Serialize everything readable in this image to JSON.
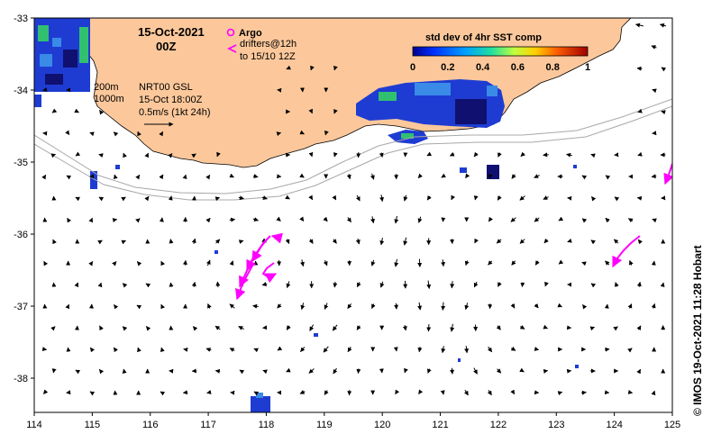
{
  "title": {
    "date": "15-Oct-2021",
    "time": "00Z"
  },
  "legend": {
    "argo_label": "Argo",
    "drifters_line1": "drifters@12h",
    "drifters_line2": "to 15/10 12Z",
    "argo_color": "#ff00ff"
  },
  "contours": {
    "label_200": "200m",
    "label_1000": "1000m"
  },
  "current_info": {
    "line1": "NRT00 GSL",
    "line2": "15-Oct 18:00Z",
    "line3": "0.5m/s (1kt 24h)"
  },
  "colorbar": {
    "title": "std dev of 4hr SST comp",
    "ticks": [
      "0",
      "0.2",
      "0.4",
      "0.6",
      "0.8",
      "1"
    ]
  },
  "axes": {
    "x_ticks": [
      "114",
      "115",
      "116",
      "117",
      "118",
      "119",
      "120",
      "121",
      "122",
      "123",
      "124",
      "125"
    ],
    "y_ticks": [
      "-33",
      "-34",
      "-35",
      "-36",
      "-37",
      "-38"
    ]
  },
  "credit": "© IMOS 19-Oct-2021 11:28 Hobart",
  "colors": {
    "land": "#fcc89b",
    "sst_main": "#1e3cd2",
    "sst_dark": "#101070",
    "sst_mid": "#3a8ae8",
    "sst_green": "#30c070",
    "drifter": "#ff00ff",
    "isobath": "#a8a8a8"
  }
}
